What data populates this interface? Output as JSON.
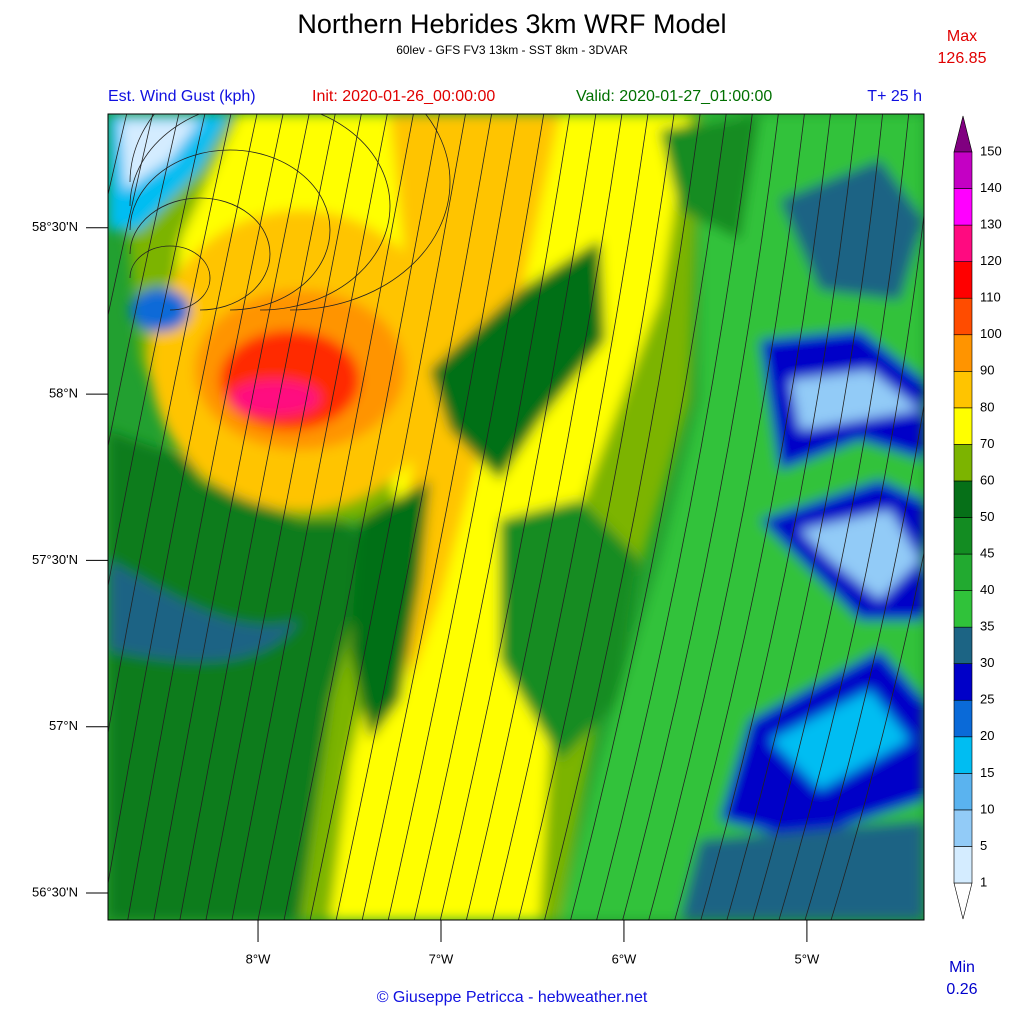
{
  "header": {
    "title": "Northern Hebrides 3km WRF Model",
    "subtitle": "60lev - GFS FV3 13km - SST 8km - 3DVAR"
  },
  "extremes": {
    "max_label": "Max",
    "max_value": 126.85,
    "min_label": "Min",
    "min_value": 0.26
  },
  "info": {
    "field": "Est. Wind Gust (kph)",
    "init": "Init: 2020-01-26_00:00:00",
    "valid": "Valid: 2020-01-27_01:00:00",
    "lead": "T+ 25 h"
  },
  "map": {
    "lonlim": [
      -8.82,
      -4.36
    ],
    "latlim": [
      56.419,
      58.842
    ],
    "latticks": [
      {
        "value": 58.5,
        "label": "58°30'N"
      },
      {
        "value": 58,
        "label": "58°N"
      },
      {
        "value": 57.5,
        "label": "57°30'N"
      },
      {
        "value": 57,
        "label": "57°N"
      },
      {
        "value": 56.5,
        "label": "56°30'N"
      }
    ],
    "lonticks": [
      {
        "value": -8,
        "label": "8°W"
      },
      {
        "value": -7,
        "label": "7°W"
      },
      {
        "value": -6,
        "label": "6°W"
      },
      {
        "value": -5,
        "label": "5°W"
      }
    ]
  },
  "legend": {
    "levels": [
      1,
      5,
      10,
      15,
      20,
      25,
      30,
      35,
      40,
      45,
      50,
      60,
      70,
      80,
      90,
      100,
      110,
      120,
      130,
      140,
      150
    ],
    "colors": [
      "#d4ecff",
      "#92cbf7",
      "#5ab3ef",
      "#00bdf2",
      "#0a6ad8",
      "#0000c8",
      "#1c6484",
      "#30c23a",
      "#22aa30",
      "#138c22",
      "#067018",
      "#7cb400",
      "#ffff00",
      "#ffc400",
      "#ff9400",
      "#ff4c00",
      "#ff0000",
      "#ff0a80",
      "#ff00ff",
      "#c400c4"
    ],
    "under_color": "#ffffff",
    "over_color": "#800080"
  },
  "credit": "© Giuseppe Petricca - hebweather.net"
}
